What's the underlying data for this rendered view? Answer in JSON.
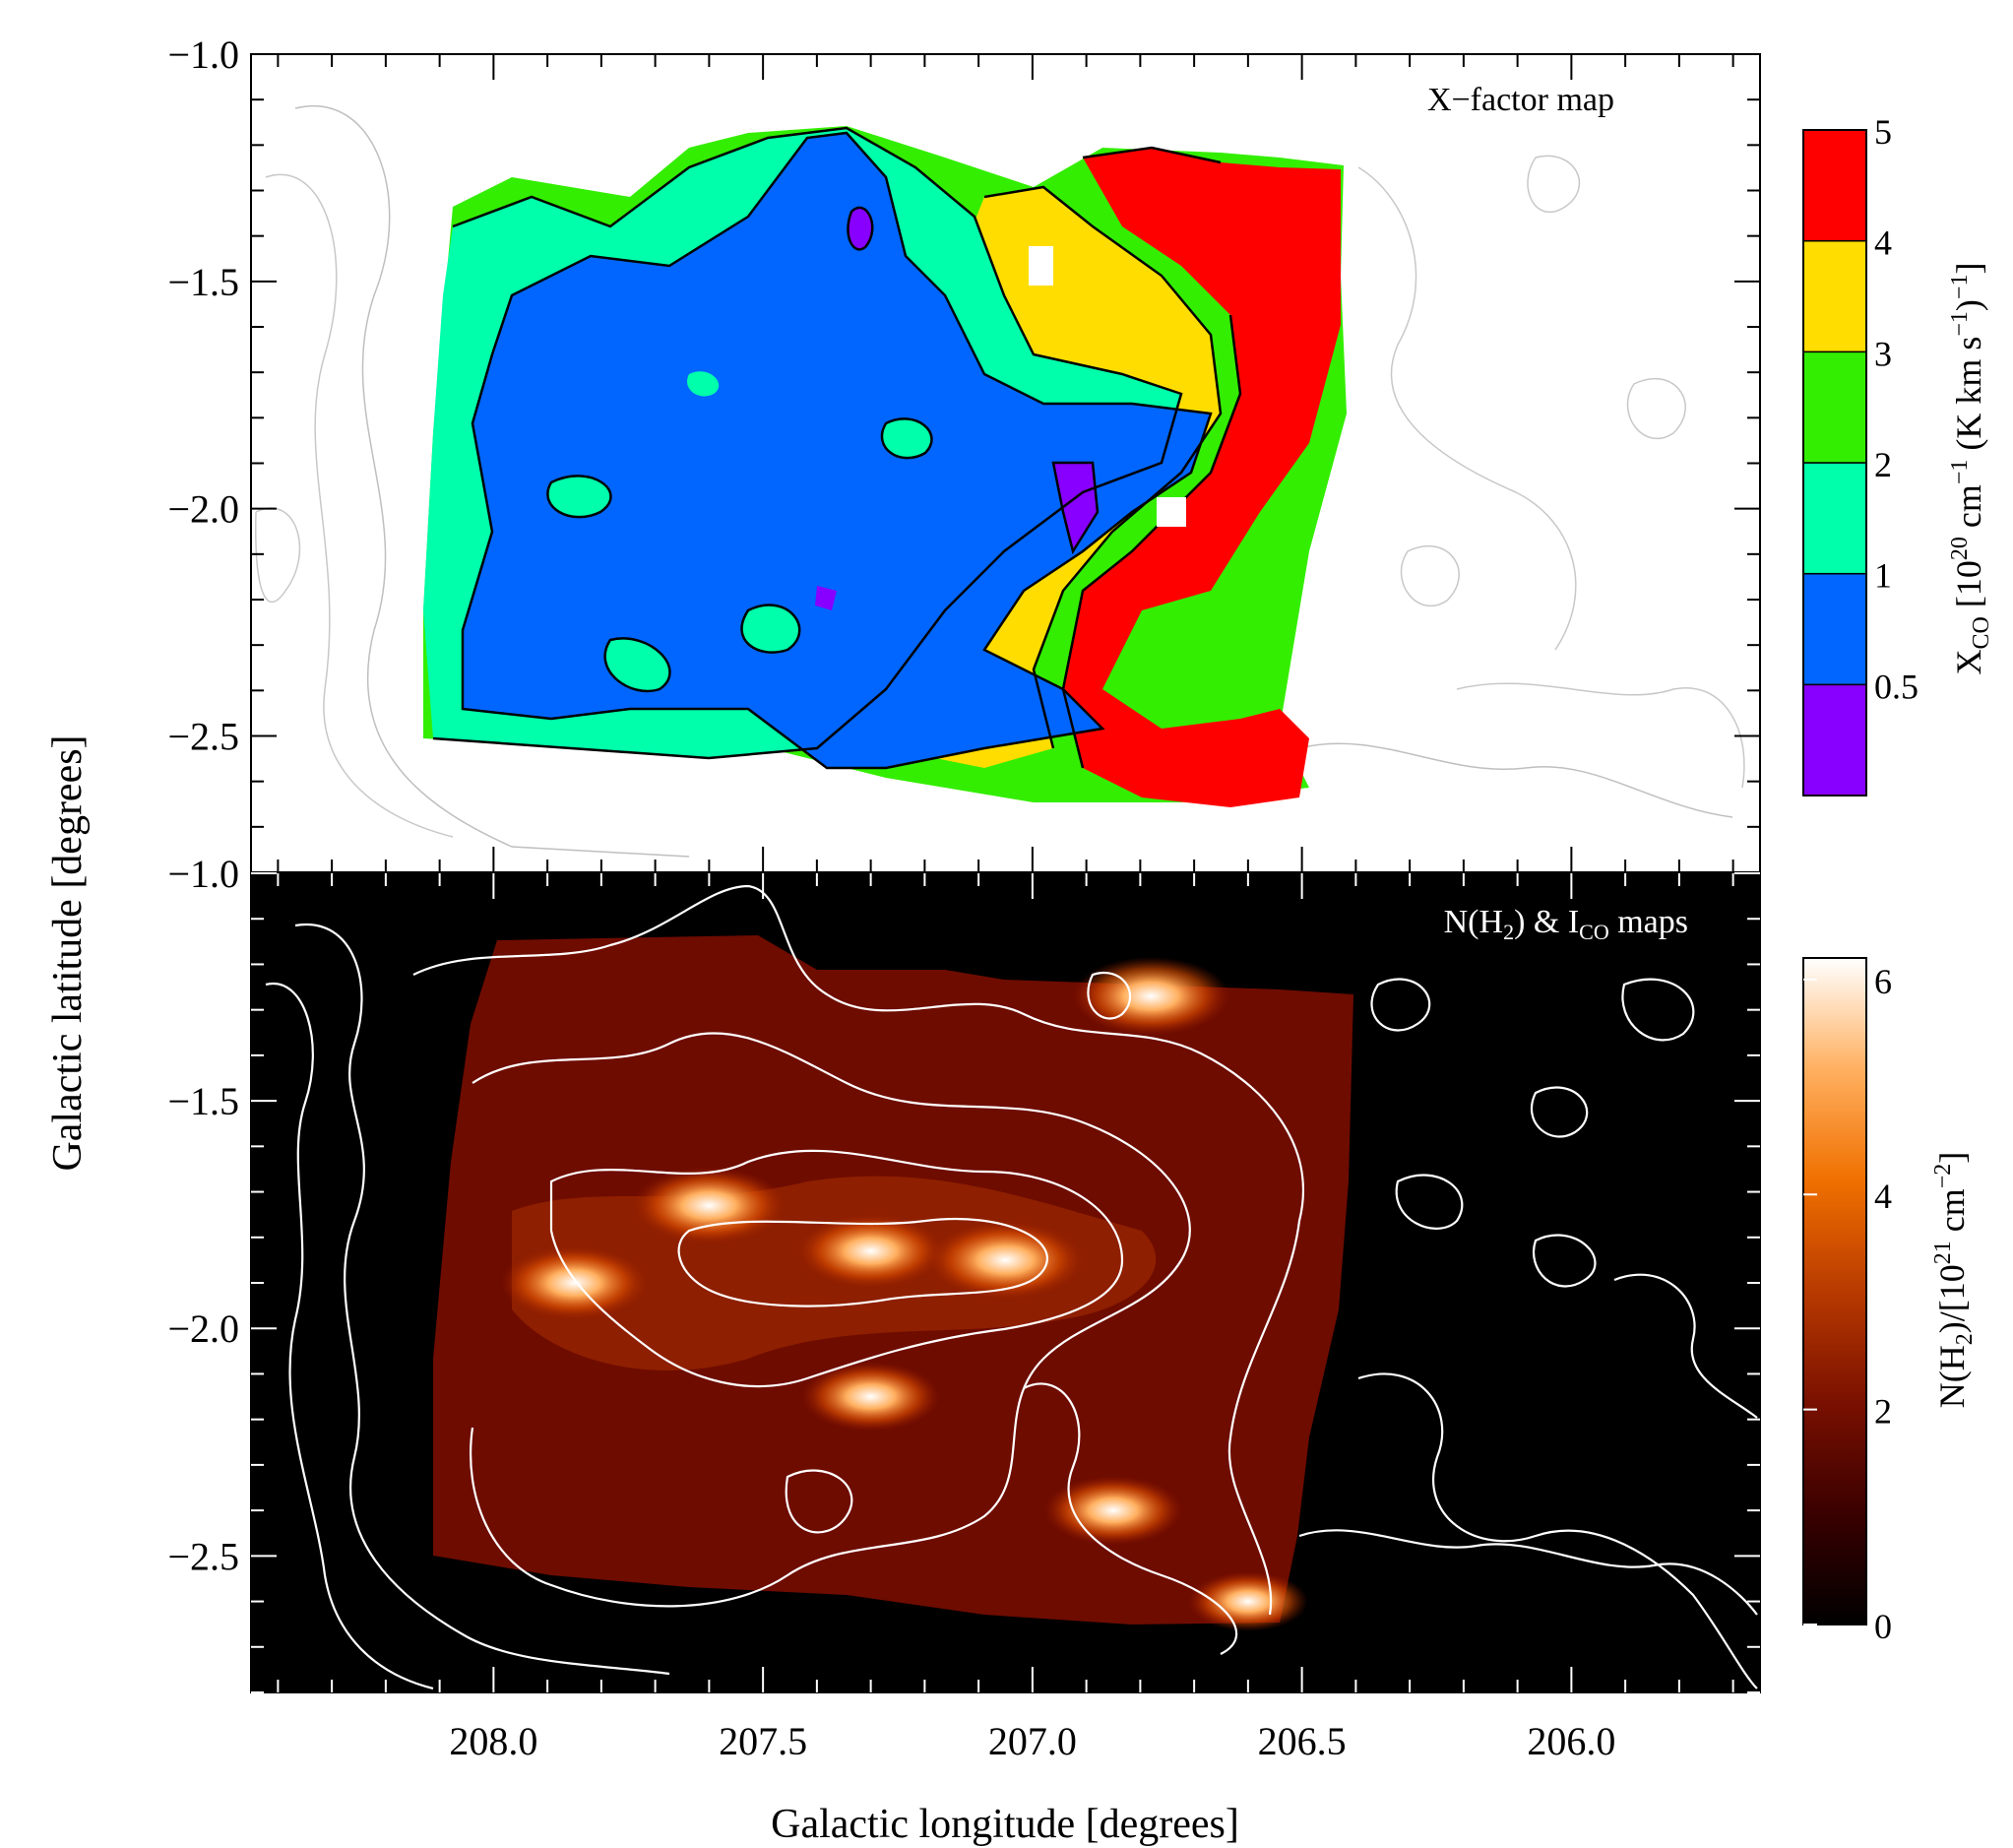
{
  "figure": {
    "xlabel": "Galactic longitude [degrees]",
    "ylabel": "Galactic latitude [degrees]"
  },
  "chart_data": [
    {
      "type": "heatmap",
      "title": "X−factor map",
      "xlim": [
        208.45,
        205.65
      ],
      "ylim": [
        -2.8,
        -1.0
      ],
      "xticks": [
        208.0,
        207.5,
        207.0,
        206.5,
        206.0
      ],
      "yticks": [
        -1.0,
        -1.5,
        -2.0,
        -2.5
      ],
      "ytick_labels": [
        "−1.0",
        "−1.5",
        "−2.0",
        "−2.5"
      ],
      "colorbar": {
        "label_main": "X",
        "label_sub": "CO",
        "label_rest": "[10",
        "label_exp1": "20",
        "label_rest2": " cm",
        "label_exp2": "−1",
        "label_rest3": " (K km s",
        "label_exp3": "−1",
        "label_rest4": ")",
        "label_exp4": "−1",
        "label_rest5": "]",
        "levels": [
          "0.5",
          "1",
          "2",
          "3",
          "4",
          "5"
        ],
        "bands": [
          {
            "range": [
              0,
              0.5
            ],
            "color": "#8800ff"
          },
          {
            "range": [
              0.5,
              1
            ],
            "color": "#0066ff"
          },
          {
            "range": [
              1,
              2
            ],
            "color": "#00ffaa"
          },
          {
            "range": [
              2,
              3
            ],
            "color": "#33ee00"
          },
          {
            "range": [
              3,
              4
            ],
            "color": "#ffdd00"
          },
          {
            "range": [
              4,
              5
            ],
            "color": "#ff0000"
          }
        ]
      },
      "background_contours": "grey",
      "data_region": {
        "l": [
          208.1,
          206.4
        ],
        "b": [
          -2.65,
          -1.17
        ]
      }
    },
    {
      "type": "heatmap",
      "title_main": "N(H",
      "title_sub": "2",
      "title_mid": ") & I",
      "title_sub2": "CO",
      "title_end": " maps",
      "xlim": [
        208.45,
        205.65
      ],
      "ylim": [
        -2.8,
        -1.0
      ],
      "xticks": [
        208.0,
        207.5,
        207.0,
        206.5,
        206.0
      ],
      "xtick_labels": [
        "208.0",
        "207.5",
        "207.0",
        "206.5",
        "206.0"
      ],
      "yticks": [
        -1.0,
        -1.5,
        -2.0,
        -2.5
      ],
      "ytick_labels": [
        "−1.0",
        "−1.5",
        "−2.0",
        "−2.5"
      ],
      "colorbar": {
        "label_main": "N(H",
        "label_sub": "2",
        "label_rest": ")/[10",
        "label_exp1": "21",
        "label_rest2": " cm",
        "label_exp2": "−2",
        "label_rest3": "]",
        "range": [
          0,
          6.2
        ],
        "ticks": [
          "0",
          "2",
          "4",
          "6"
        ],
        "tick_values": [
          0,
          2,
          4,
          6
        ],
        "colormap": [
          "#000000",
          "#3a0000",
          "#7a1000",
          "#b83a00",
          "#f07000",
          "#ffb060",
          "#ffffff"
        ]
      },
      "contour_color": "#ffffff",
      "data_region": {
        "l": [
          208.12,
          206.38
        ],
        "b": [
          -2.65,
          -1.1
        ]
      },
      "peaks": [
        {
          "l": 207.85,
          "b": -1.9,
          "value": 5.5
        },
        {
          "l": 207.6,
          "b": -1.73,
          "value": 5.8
        },
        {
          "l": 207.3,
          "b": -1.83,
          "value": 5.5
        },
        {
          "l": 207.05,
          "b": -1.85,
          "value": 6.0
        },
        {
          "l": 206.78,
          "b": -1.27,
          "value": 6.0
        },
        {
          "l": 207.3,
          "b": -2.15,
          "value": 5.0
        },
        {
          "l": 206.85,
          "b": -2.4,
          "value": 5.0
        },
        {
          "l": 206.6,
          "b": -2.6,
          "value": 4.0
        }
      ]
    }
  ]
}
